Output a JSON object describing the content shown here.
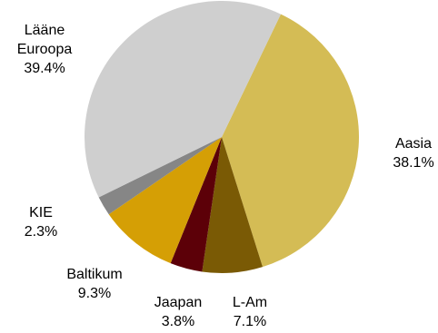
{
  "chart_data": {
    "type": "pie",
    "title": "",
    "slices": [
      {
        "name": "Aasia",
        "name_lines": [
          "Aasia"
        ],
        "value": 38.1,
        "value_label": "38.1%",
        "color": "#d4bc55"
      },
      {
        "name": "L-Am",
        "name_lines": [
          "L-Am"
        ],
        "value": 7.1,
        "value_label": "7.1%",
        "color": "#7a5a05"
      },
      {
        "name": "Jaapan",
        "name_lines": [
          "Jaapan"
        ],
        "value": 3.8,
        "value_label": "3.8%",
        "color": "#5c0008"
      },
      {
        "name": "Baltikum",
        "name_lines": [
          "Baltikum"
        ],
        "value": 9.3,
        "value_label": "9.3%",
        "color": "#d59f05"
      },
      {
        "name": "KIE",
        "name_lines": [
          "KIE"
        ],
        "value": 2.3,
        "value_label": "2.3%",
        "color": "#868686"
      },
      {
        "name": "Lääne Euroopa",
        "name_lines": [
          "Lääne",
          "Euroopa"
        ],
        "value": 39.4,
        "value_label": "39.4%",
        "color": "#cfcfcf"
      }
    ]
  }
}
